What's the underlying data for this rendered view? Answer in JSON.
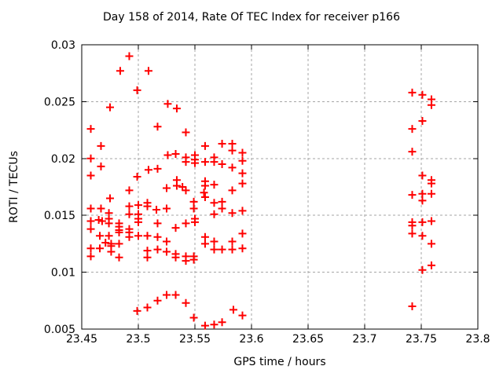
{
  "chart_data": {
    "type": "scatter",
    "title": "Day 158 of 2014, Rate Of TEC Index for receiver p166",
    "xlabel": "GPS time / hours",
    "ylabel": "ROTI / TECUs",
    "xlim": [
      23.45,
      23.8
    ],
    "ylim": [
      0.005,
      0.03
    ],
    "grid": true,
    "legend": "none",
    "marker": "plus",
    "colors": {
      "marker": "#ff0000",
      "grid": "#a6a6a6",
      "axis": "#000000",
      "background": "#ffffff"
    },
    "xticks": [
      {
        "value": 23.45,
        "label": "23.45"
      },
      {
        "value": 23.5,
        "label": "23.5"
      },
      {
        "value": 23.55,
        "label": "23.55"
      },
      {
        "value": 23.6,
        "label": "23.6"
      },
      {
        "value": 23.65,
        "label": "23.65"
      },
      {
        "value": 23.7,
        "label": "23.7"
      },
      {
        "value": 23.75,
        "label": "23.75"
      },
      {
        "value": 23.8,
        "label": "23.8"
      }
    ],
    "yticks": [
      {
        "value": 0.005,
        "label": "0.005"
      },
      {
        "value": 0.01,
        "label": "0.01"
      },
      {
        "value": 0.015,
        "label": "0.015"
      },
      {
        "value": 0.02,
        "label": "0.02"
      },
      {
        "value": 0.025,
        "label": "0.025"
      },
      {
        "value": 0.03,
        "label": "0.03"
      }
    ],
    "series": [
      {
        "name": "ROTI",
        "color": "#ff0000",
        "points": [
          [
            23.492,
            0.029
          ],
          [
            23.484,
            0.0277
          ],
          [
            23.475,
            0.0245
          ],
          [
            23.458,
            0.0226
          ],
          [
            23.467,
            0.0211
          ],
          [
            23.458,
            0.02
          ],
          [
            23.467,
            0.0193
          ],
          [
            23.458,
            0.0185
          ],
          [
            23.492,
            0.0172
          ],
          [
            23.475,
            0.0165
          ],
          [
            23.492,
            0.0158
          ],
          [
            23.458,
            0.0156
          ],
          [
            23.467,
            0.0156
          ],
          [
            23.474,
            0.0152
          ],
          [
            23.492,
            0.0151
          ],
          [
            23.474,
            0.0147
          ],
          [
            23.465,
            0.0146
          ],
          [
            23.468,
            0.0145
          ],
          [
            23.458,
            0.0145
          ],
          [
            23.474,
            0.0143
          ],
          [
            23.483,
            0.0143
          ],
          [
            23.483,
            0.014
          ],
          [
            23.492,
            0.0138
          ],
          [
            23.458,
            0.0138
          ],
          [
            23.483,
            0.0137
          ],
          [
            23.492,
            0.0135
          ],
          [
            23.483,
            0.0135
          ],
          [
            23.466,
            0.0132
          ],
          [
            23.474,
            0.0132
          ],
          [
            23.492,
            0.0131
          ],
          [
            23.471,
            0.0126
          ],
          [
            23.476,
            0.0125
          ],
          [
            23.483,
            0.0125
          ],
          [
            23.476,
            0.0123
          ],
          [
            23.458,
            0.0121
          ],
          [
            23.466,
            0.0121
          ],
          [
            23.476,
            0.0118
          ],
          [
            23.458,
            0.0114
          ],
          [
            23.483,
            0.0113
          ],
          [
            23.509,
            0.0277
          ],
          [
            23.499,
            0.026
          ],
          [
            23.526,
            0.0248
          ],
          [
            23.534,
            0.0244
          ],
          [
            23.517,
            0.0228
          ],
          [
            23.542,
            0.0223
          ],
          [
            23.533,
            0.0204
          ],
          [
            23.526,
            0.0203
          ],
          [
            23.542,
            0.0201
          ],
          [
            23.542,
            0.0197
          ],
          [
            23.517,
            0.0191
          ],
          [
            23.509,
            0.019
          ],
          [
            23.499,
            0.0184
          ],
          [
            23.534,
            0.0181
          ],
          [
            23.534,
            0.0176
          ],
          [
            23.539,
            0.0175
          ],
          [
            23.525,
            0.0174
          ],
          [
            23.542,
            0.0172
          ],
          [
            23.508,
            0.0161
          ],
          [
            23.5,
            0.0159
          ],
          [
            23.508,
            0.0158
          ],
          [
            23.516,
            0.0155
          ],
          [
            23.525,
            0.0156
          ],
          [
            23.5,
            0.0151
          ],
          [
            23.55,
            0.0147
          ],
          [
            23.5,
            0.0147
          ],
          [
            23.55,
            0.0144
          ],
          [
            23.5,
            0.0144
          ],
          [
            23.517,
            0.0143
          ],
          [
            23.542,
            0.0143
          ],
          [
            23.533,
            0.0139
          ],
          [
            23.5,
            0.0132
          ],
          [
            23.508,
            0.0132
          ],
          [
            23.517,
            0.0131
          ],
          [
            23.525,
            0.0127
          ],
          [
            23.508,
            0.0119
          ],
          [
            23.517,
            0.012
          ],
          [
            23.525,
            0.0118
          ],
          [
            23.533,
            0.0116
          ],
          [
            23.533,
            0.0113
          ],
          [
            23.508,
            0.0113
          ],
          [
            23.542,
            0.0114
          ],
          [
            23.542,
            0.011
          ],
          [
            23.499,
            0.0066
          ],
          [
            23.508,
            0.0069
          ],
          [
            23.517,
            0.0075
          ],
          [
            23.525,
            0.008
          ],
          [
            23.533,
            0.008
          ],
          [
            23.542,
            0.0073
          ],
          [
            23.574,
            0.0213
          ],
          [
            23.583,
            0.0213
          ],
          [
            23.559,
            0.0211
          ],
          [
            23.583,
            0.0207
          ],
          [
            23.592,
            0.0205
          ],
          [
            23.55,
            0.0203
          ],
          [
            23.567,
            0.0201
          ],
          [
            23.55,
            0.0199
          ],
          [
            23.592,
            0.0198
          ],
          [
            23.559,
            0.0197
          ],
          [
            23.567,
            0.0197
          ],
          [
            23.55,
            0.0196
          ],
          [
            23.574,
            0.0195
          ],
          [
            23.583,
            0.0192
          ],
          [
            23.592,
            0.0187
          ],
          [
            23.559,
            0.018
          ],
          [
            23.592,
            0.0178
          ],
          [
            23.567,
            0.0177
          ],
          [
            23.559,
            0.0176
          ],
          [
            23.583,
            0.0172
          ],
          [
            23.558,
            0.017
          ],
          [
            23.559,
            0.0166
          ],
          [
            23.549,
            0.0162
          ],
          [
            23.574,
            0.0162
          ],
          [
            23.567,
            0.0161
          ],
          [
            23.549,
            0.0156
          ],
          [
            23.574,
            0.0156
          ],
          [
            23.583,
            0.0152
          ],
          [
            23.567,
            0.0151
          ],
          [
            23.592,
            0.0154
          ],
          [
            23.592,
            0.0134
          ],
          [
            23.559,
            0.0131
          ],
          [
            23.583,
            0.0127
          ],
          [
            23.567,
            0.0127
          ],
          [
            23.559,
            0.0125
          ],
          [
            23.567,
            0.012
          ],
          [
            23.574,
            0.012
          ],
          [
            23.583,
            0.012
          ],
          [
            23.592,
            0.0121
          ],
          [
            23.549,
            0.0114
          ],
          [
            23.549,
            0.0111
          ],
          [
            23.584,
            0.0067
          ],
          [
            23.592,
            0.0062
          ],
          [
            23.549,
            0.006
          ],
          [
            23.574,
            0.0056
          ],
          [
            23.567,
            0.0054
          ],
          [
            23.559,
            0.0053
          ],
          [
            23.742,
            0.0258
          ],
          [
            23.751,
            0.0256
          ],
          [
            23.759,
            0.0252
          ],
          [
            23.759,
            0.0247
          ],
          [
            23.751,
            0.0233
          ],
          [
            23.742,
            0.0226
          ],
          [
            23.742,
            0.0206
          ],
          [
            23.751,
            0.0185
          ],
          [
            23.759,
            0.0181
          ],
          [
            23.759,
            0.0178
          ],
          [
            23.751,
            0.0169
          ],
          [
            23.759,
            0.0169
          ],
          [
            23.742,
            0.0168
          ],
          [
            23.751,
            0.0163
          ],
          [
            23.759,
            0.0145
          ],
          [
            23.751,
            0.0144
          ],
          [
            23.742,
            0.0144
          ],
          [
            23.742,
            0.0141
          ],
          [
            23.742,
            0.0134
          ],
          [
            23.751,
            0.0132
          ],
          [
            23.759,
            0.0125
          ],
          [
            23.759,
            0.0106
          ],
          [
            23.751,
            0.0102
          ],
          [
            23.742,
            0.007
          ]
        ]
      }
    ]
  }
}
